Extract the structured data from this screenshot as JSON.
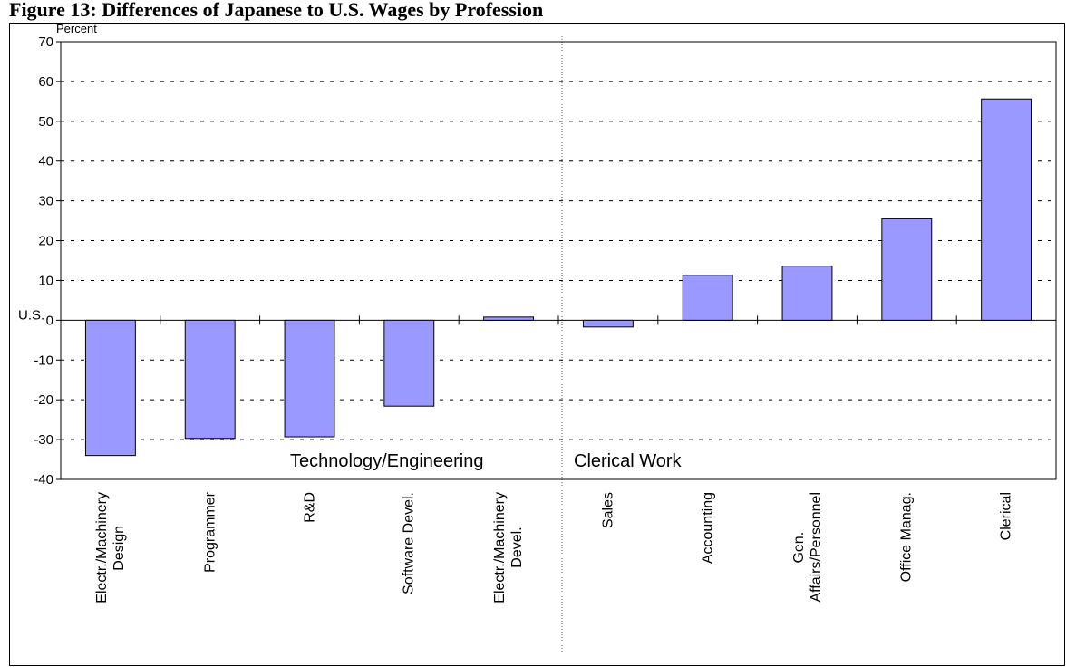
{
  "chart_data": {
    "type": "bar",
    "title": "Figure 13: Differences of Japanese to U.S. Wages by Profession",
    "y_axis_label": "Percent",
    "baseline_label": "U.S.",
    "group_labels": [
      "Technology/Engineering",
      "Clerical Work"
    ],
    "categories": [
      "Electr./Machinery\nDesign",
      "Programmer",
      "R&D",
      "Software Devel.",
      "Electr./Machinery\nDevel.",
      "Sales",
      "Accounting",
      "Gen.\nAffairs/Personnel",
      "Office Manag.",
      "Clerical"
    ],
    "values": [
      -34,
      -29.7,
      -29.3,
      -21.6,
      0.8,
      -1.7,
      11.3,
      13.6,
      25.5,
      55.6
    ],
    "color": "#9999ff",
    "ylim": [
      -40,
      70
    ],
    "yticks": [
      -40,
      -30,
      -20,
      -10,
      0,
      10,
      20,
      30,
      40,
      50,
      60,
      70
    ],
    "grid": true
  }
}
